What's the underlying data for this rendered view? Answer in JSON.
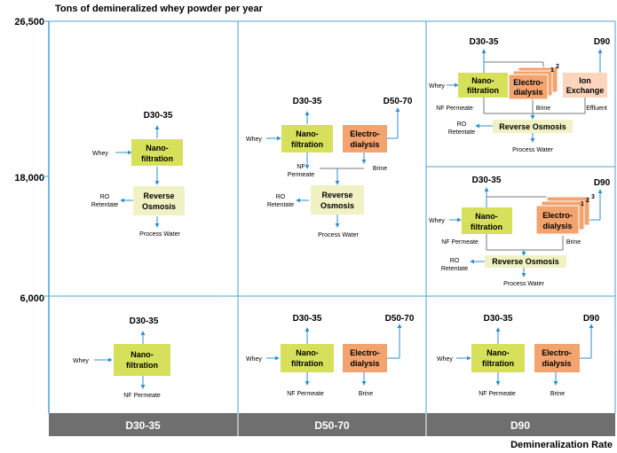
{
  "title": "Tons of demineralized whey powder per year",
  "x_axis_label": "Demineralization Rate",
  "y_ticks": [
    "26,500",
    "18,000",
    "6,000"
  ],
  "columns": [
    "D30-35",
    "D50-70",
    "D90"
  ],
  "labels": {
    "whey": "Whey",
    "nano_1": "Nano-",
    "nano_2": "filtration",
    "electro_1": "Electro-",
    "electro_2": "dialysis",
    "reverse_1": "Reverse",
    "reverse_2": "Osmosis",
    "reverse_full": "Reverse Osmosis",
    "ion_1": "Ion",
    "ion_2": "Exchange",
    "ro_1": "RO",
    "ro_2": "Retentate",
    "process_water": "Process Water",
    "nf_permeate": "NF Permeate",
    "nf": "NF",
    "permeate": "Permeate",
    "brine": "Brine",
    "effluent": "Effluent",
    "d30": "D30-35",
    "d50": "D50-70",
    "d90": "D90",
    "stack_1": "1",
    "stack_2": "2",
    "stack_3": "3"
  },
  "colors": {
    "axis": "#4aa3d9",
    "nano": "#d6e05a",
    "reverse": "#f0f2c4",
    "electro": "#f2a36e",
    "ion": "#fbd6bd",
    "band": "#6f6f6f",
    "connector": "#7a7a7a"
  }
}
